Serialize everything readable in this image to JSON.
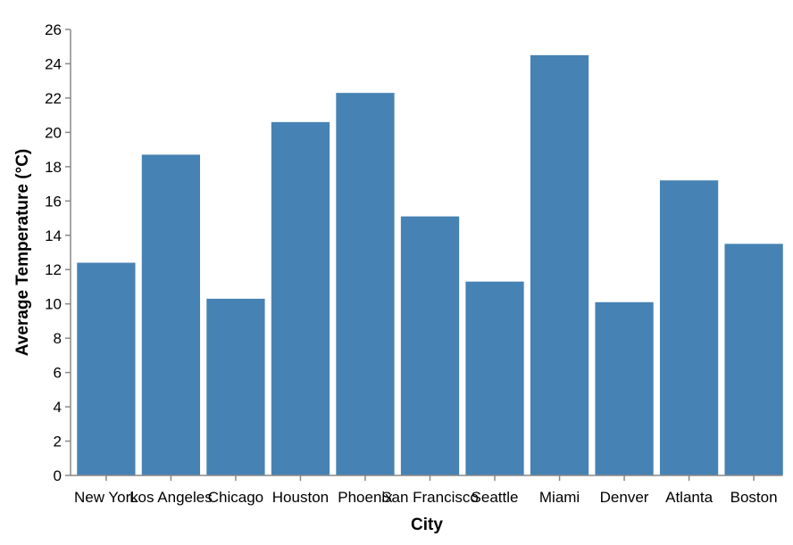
{
  "chart_data": {
    "type": "bar",
    "categories": [
      "New York",
      "Los Angeles",
      "Chicago",
      "Houston",
      "Phoenix",
      "San Francisco",
      "Seattle",
      "Miami",
      "Denver",
      "Atlanta",
      "Boston"
    ],
    "values": [
      12.4,
      18.7,
      10.3,
      20.6,
      22.3,
      15.1,
      11.3,
      24.5,
      10.1,
      17.2,
      13.5
    ],
    "title": "",
    "xlabel": "City",
    "ylabel": "Average Temperature (°C)",
    "ylim": [
      0,
      26
    ],
    "yticks": [
      "0",
      "2",
      "4",
      "6",
      "8",
      "10",
      "12",
      "14",
      "16",
      "18",
      "20",
      "22",
      "24",
      "26"
    ],
    "bar_color": "#4682b4",
    "axis_color": "#888888",
    "grid": false,
    "legend": "none"
  }
}
